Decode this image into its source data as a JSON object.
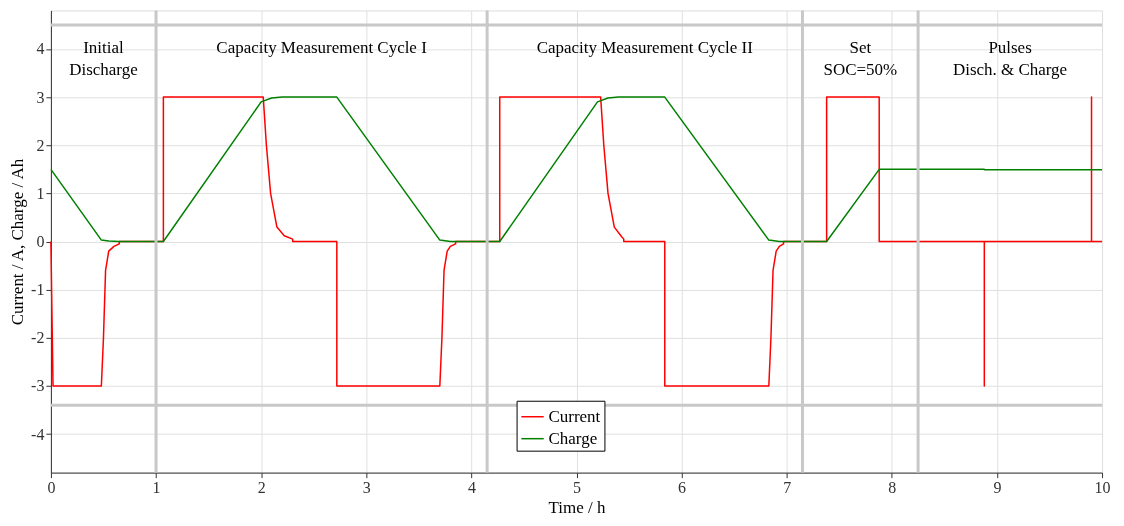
{
  "chart_data": {
    "type": "line",
    "xlabel": "Time / h",
    "ylabel": "Current / A, Charge / Ah",
    "xlim": [
      0,
      10
    ],
    "ylim": [
      -4.8,
      4.8
    ],
    "xticks": [
      0,
      1,
      2,
      3,
      4,
      5,
      6,
      7,
      8,
      9,
      10
    ],
    "yticks": [
      -4,
      -3,
      -2,
      -1,
      0,
      1,
      2,
      3,
      4
    ],
    "grid": true,
    "legend": "bottom",
    "line_style": "solid",
    "marker": "none",
    "series": [
      {
        "name": "Current",
        "color": "#ff0000",
        "x": [
          0,
          0.02,
          0.48,
          0.5,
          0.52,
          0.55,
          0.6,
          0.65,
          0.65,
          1.07,
          1.07,
          2.02,
          2.05,
          2.09,
          2.15,
          2.22,
          2.3,
          2.3,
          2.72,
          2.72,
          3.7,
          3.72,
          3.74,
          3.77,
          3.8,
          3.85,
          3.85,
          4.27,
          4.27,
          5.23,
          5.26,
          5.3,
          5.36,
          5.43,
          5.45,
          5.45,
          5.84,
          5.84,
          6.83,
          6.85,
          6.87,
          6.9,
          6.93,
          6.97,
          6.97,
          7.38,
          7.38,
          7.88,
          7.88,
          8.88,
          8.88,
          8.88,
          9.9,
          9.9,
          9.9,
          10
        ],
        "values": [
          0,
          -3,
          -3,
          -2.0,
          -0.6,
          -0.2,
          -0.1,
          -0.05,
          0,
          0,
          3,
          3,
          2.0,
          1.0,
          0.3,
          0.12,
          0.05,
          0,
          0,
          -3,
          -3,
          -2.0,
          -0.6,
          -0.2,
          -0.1,
          -0.05,
          0,
          0,
          3,
          3,
          2.0,
          1.0,
          0.3,
          0.1,
          0.05,
          0,
          0,
          -3,
          -3,
          -2.0,
          -0.6,
          -0.2,
          -0.1,
          -0.05,
          0,
          0,
          3,
          3,
          0,
          0,
          -3,
          0,
          0,
          3,
          0,
          0
        ]
      },
      {
        "name": "Charge",
        "color": "#008000",
        "x": [
          0,
          0.48,
          0.55,
          0.65,
          1.07,
          2.0,
          2.1,
          2.2,
          2.72,
          3.7,
          3.8,
          4.27,
          5.2,
          5.3,
          5.4,
          5.84,
          6.83,
          6.93,
          7.38,
          7.88,
          8.88,
          8.88,
          10
        ],
        "values": [
          1.5,
          0.03,
          0.01,
          0,
          0,
          2.9,
          2.98,
          3,
          3,
          0.03,
          0,
          0,
          2.9,
          2.98,
          3,
          3,
          0.03,
          0,
          0,
          1.5,
          1.5,
          1.49,
          1.49
        ]
      }
    ],
    "ref_lines": [
      {
        "axis": "x",
        "value": 1,
        "color": "#c8c8c8"
      },
      {
        "axis": "x",
        "value": 4.15,
        "color": "#c8c8c8"
      },
      {
        "axis": "x",
        "value": 7.15,
        "color": "#c8c8c8"
      },
      {
        "axis": "x",
        "value": 8.25,
        "color": "#c8c8c8"
      },
      {
        "axis": "y",
        "value": 4.5,
        "color": "#c8c8c8"
      },
      {
        "axis": "y",
        "value": -3.4,
        "color": "#c8c8c8"
      }
    ],
    "annotations": [
      "Initial\nDischarge",
      "Capacity Measurement Cycle I",
      "Capacity Measurement Cycle II",
      "Set\nSOC=50%",
      "Pulses\nDisch. & Charge"
    ]
  }
}
